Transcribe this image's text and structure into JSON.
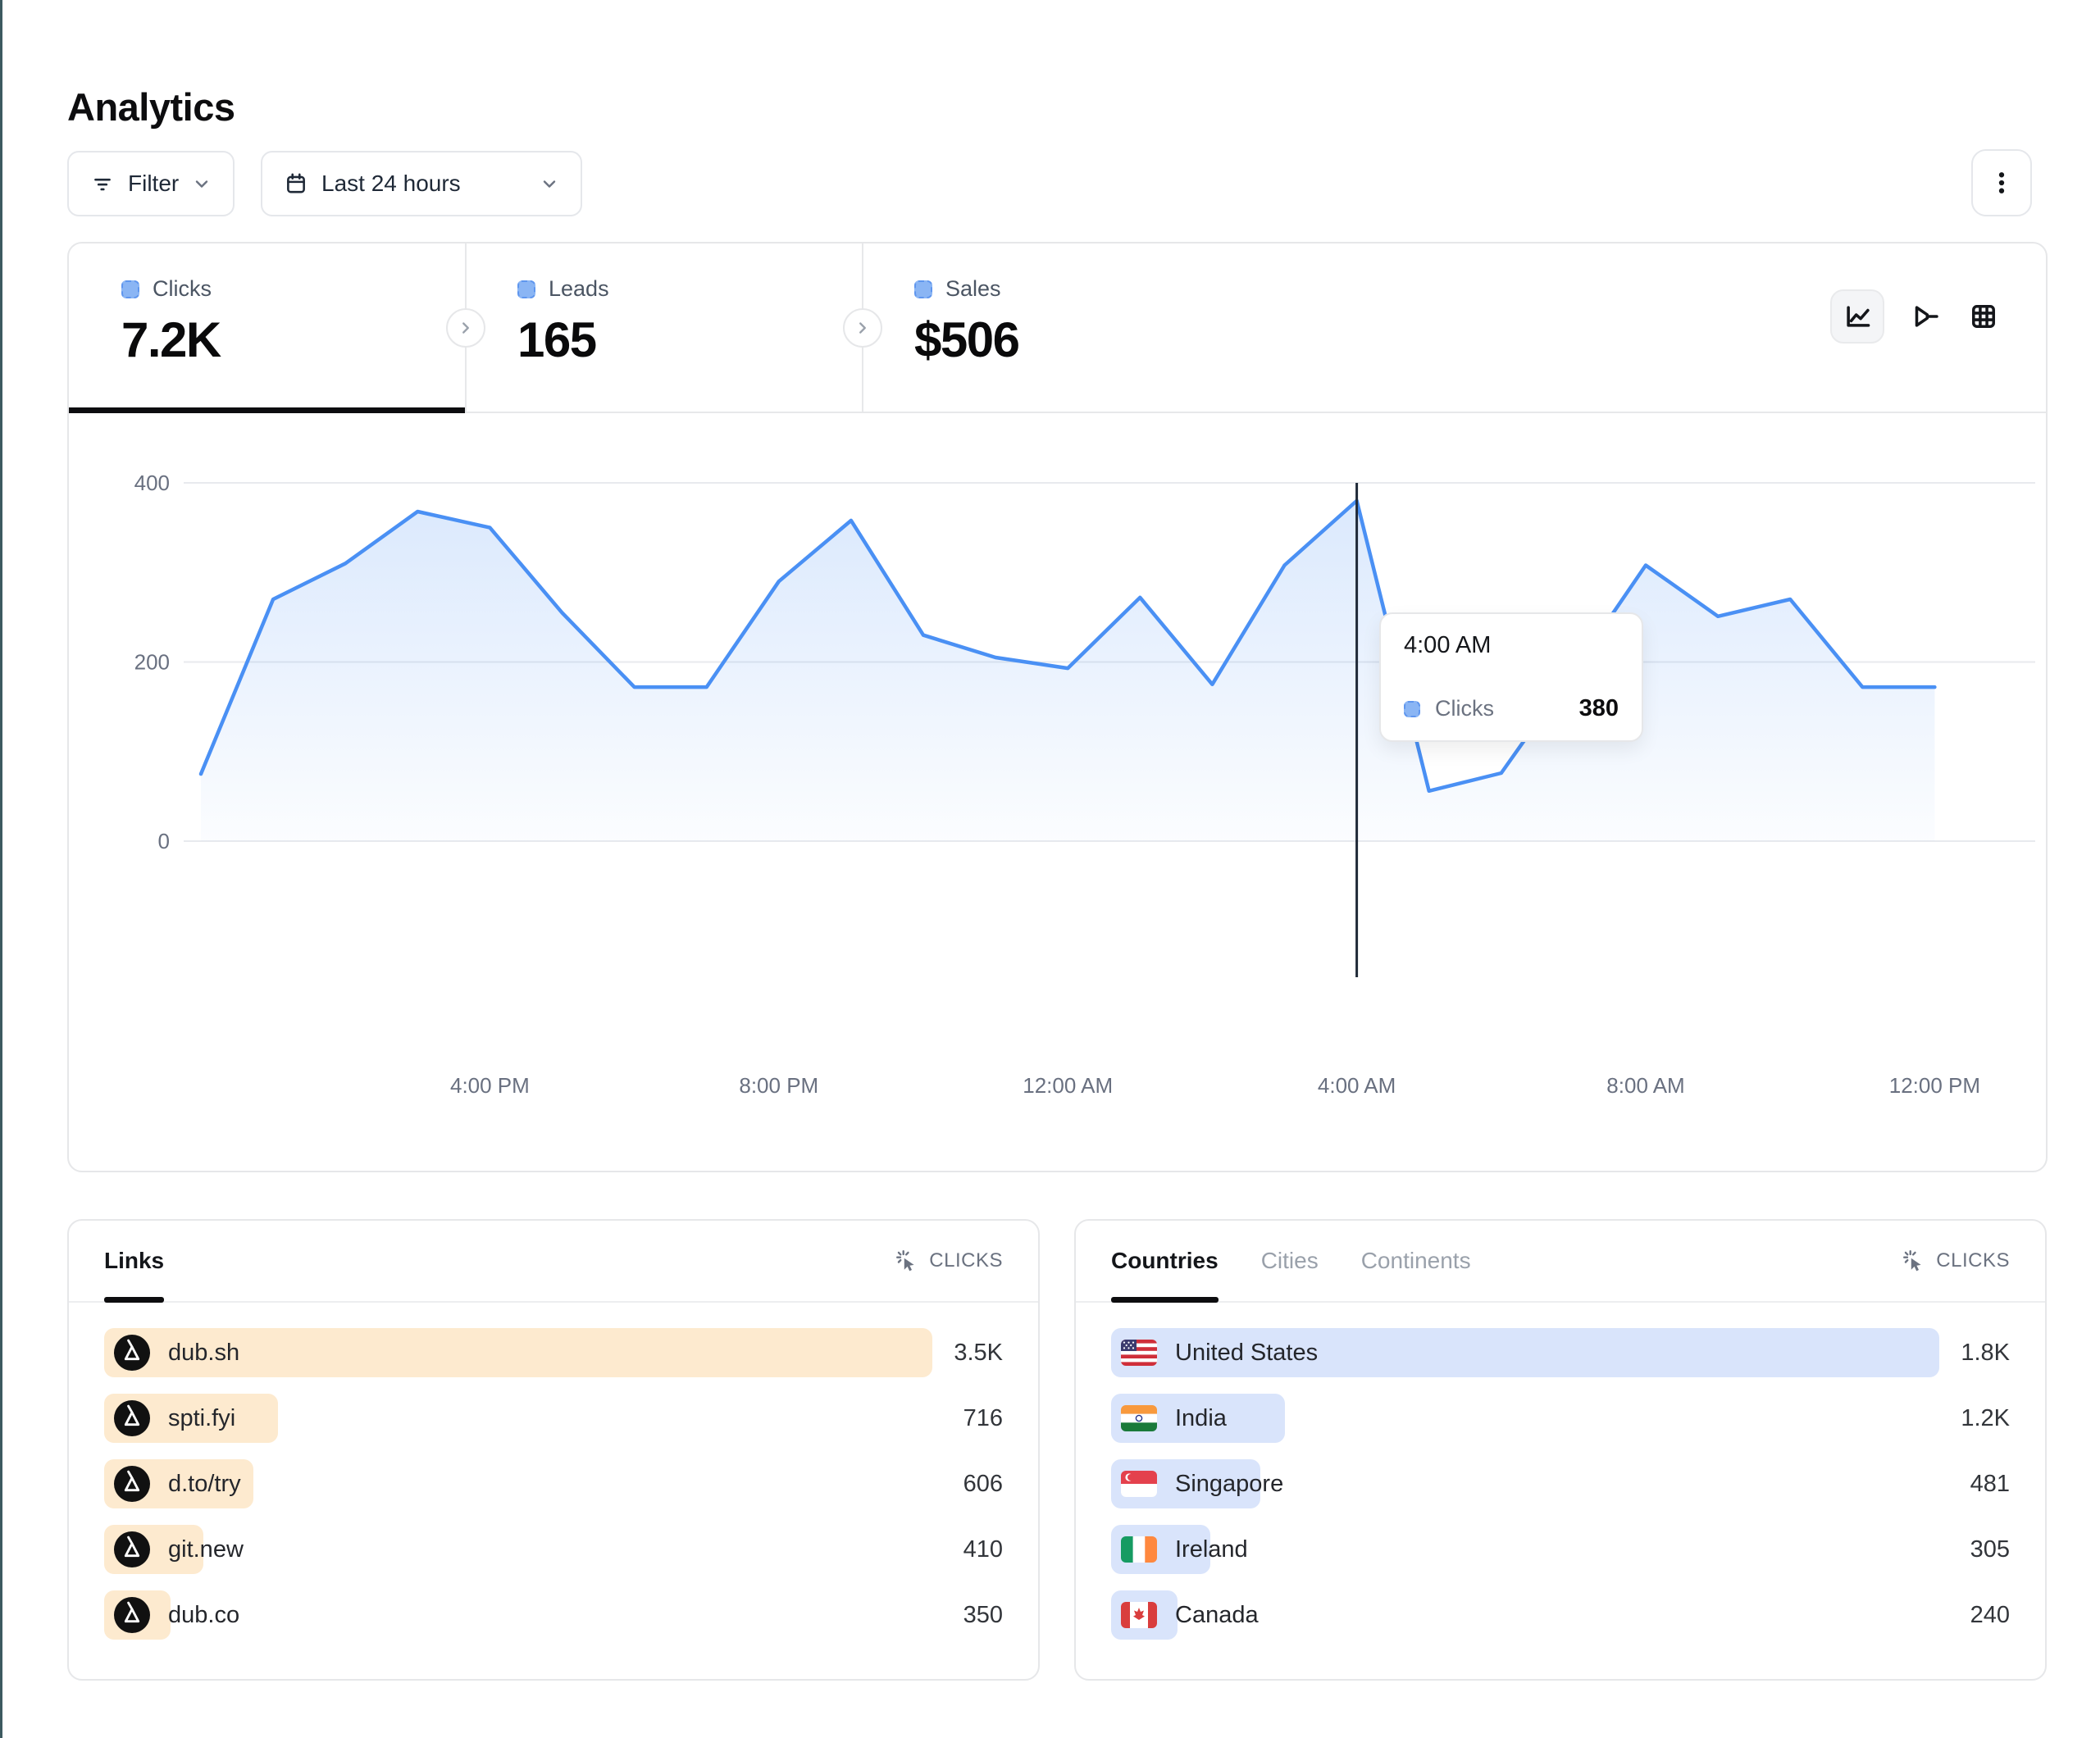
{
  "page": {
    "title": "Analytics"
  },
  "toolbar": {
    "filter": "Filter",
    "date_range": "Last 24 hours"
  },
  "stats": {
    "clicks": {
      "label": "Clicks",
      "value": "7.2K"
    },
    "leads": {
      "label": "Leads",
      "value": "165"
    },
    "sales": {
      "label": "Sales",
      "value": "$506"
    }
  },
  "chart_data": {
    "type": "area",
    "series_name": "Clicks",
    "x": [
      "12:00 PM",
      "1:00 PM",
      "2:00 PM",
      "3:00 PM",
      "4:00 PM",
      "5:00 PM",
      "6:00 PM",
      "7:00 PM",
      "8:00 PM",
      "9:00 PM",
      "10:00 PM",
      "11:00 PM",
      "12:00 AM",
      "1:00 AM",
      "2:00 AM",
      "3:00 AM",
      "4:00 AM",
      "5:00 AM",
      "6:00 AM",
      "7:00 AM",
      "8:00 AM",
      "9:00 AM",
      "10:00 AM",
      "11:00 AM",
      "12:00 PM"
    ],
    "values": [
      75,
      270,
      310,
      368,
      350,
      255,
      172,
      172,
      290,
      358,
      230,
      205,
      193,
      272,
      175,
      308,
      380,
      56,
      76,
      190,
      308,
      251,
      270,
      172,
      172
    ],
    "ylim": [
      0,
      400
    ],
    "yticks": [
      0,
      200,
      400
    ],
    "xticks": [
      {
        "label": "4:00 PM",
        "i": 4
      },
      {
        "label": "8:00 PM",
        "i": 8
      },
      {
        "label": "12:00 AM",
        "i": 12
      },
      {
        "label": "4:00 AM",
        "i": 16
      },
      {
        "label": "8:00 AM",
        "i": 20
      },
      {
        "label": "12:00 PM",
        "i": 24
      }
    ],
    "highlight": {
      "i": 16,
      "time": "4:00 AM",
      "value": 380
    },
    "grid": "horizontal-only",
    "legend": "none"
  },
  "tooltip": {
    "time": "4:00 AM",
    "series": "Clicks",
    "value": "380"
  },
  "links_panel": {
    "tab": "Links",
    "metric": "CLICKS",
    "rows": [
      {
        "label": "dub.sh",
        "value": "3.5K",
        "pct": 100
      },
      {
        "label": "spti.fyi",
        "value": "716",
        "pct": 21
      },
      {
        "label": "d.to/try",
        "value": "606",
        "pct": 18
      },
      {
        "label": "git.new",
        "value": "410",
        "pct": 12
      },
      {
        "label": "dub.co",
        "value": "350",
        "pct": 8
      }
    ]
  },
  "countries_panel": {
    "tabs": {
      "countries": "Countries",
      "cities": "Cities",
      "continents": "Continents"
    },
    "active_tab": "Countries",
    "metric": "CLICKS",
    "rows": [
      {
        "label": "United States",
        "value": "1.8K",
        "pct": 100,
        "flag": "us"
      },
      {
        "label": "India",
        "value": "1.2K",
        "pct": 21,
        "flag": "in"
      },
      {
        "label": "Singapore",
        "value": "481",
        "pct": 18,
        "flag": "sg"
      },
      {
        "label": "Ireland",
        "value": "305",
        "pct": 12,
        "flag": "ie"
      },
      {
        "label": "Canada",
        "value": "240",
        "pct": 8,
        "flag": "ca"
      }
    ]
  },
  "colors": {
    "line_blue": "#4a90f4",
    "marker_fill": "#8ab5f4",
    "links_bar": "#fdeacf",
    "countries_bar": "#d9e4fb",
    "crosshair": "#1f2937",
    "left_edge": "#3d5a60",
    "active_underline": "#0d0d0f"
  }
}
